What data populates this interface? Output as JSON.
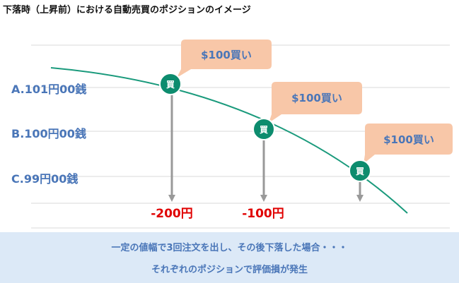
{
  "title": "下落時（上昇前）における自動売買のポジションのイメージ",
  "levels": [
    {
      "label": "A.101円00銭"
    },
    {
      "label": "B.100円00銭"
    },
    {
      "label": "C.99円00銭"
    }
  ],
  "positions": [
    {
      "marker": "買",
      "bubble": "$100買い",
      "loss": "-200円"
    },
    {
      "marker": "買",
      "bubble": "$100買い",
      "loss": "-100円"
    },
    {
      "marker": "買",
      "bubble": "$100買い",
      "loss": ""
    }
  ],
  "footer": {
    "line1": "一定の値幅で3回注文を出し、その後下落した場合・・・",
    "line2": "それぞれのポジションで評価損が発生"
  },
  "colors": {
    "curve": "#1a9a7c",
    "marker": "#0d8c6e",
    "bubble": "#f8c7a8",
    "level_text": "#4a76b8",
    "loss_text": "#e00000",
    "arrow": "#999999",
    "footer_bg": "#dce9f7"
  }
}
